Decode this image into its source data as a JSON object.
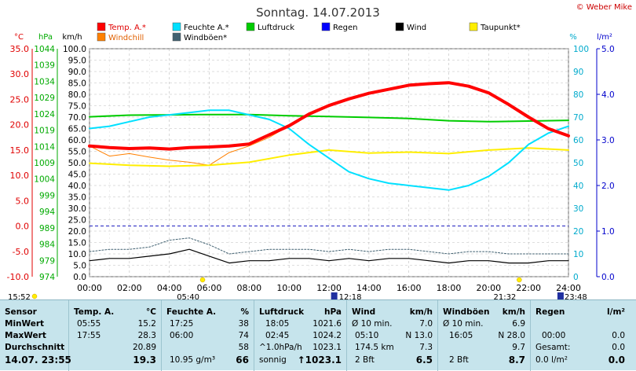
{
  "title": "Sonntag. 14.07.2013",
  "credit": "© Weber Mike",
  "legend": [
    {
      "label": "Temp. A.*",
      "color": "#ff0000"
    },
    {
      "label": "Feuchte A.*",
      "color": "#00e0ff"
    },
    {
      "label": "Luftdruck",
      "color": "#00cc00"
    },
    {
      "label": "Regen",
      "color": "#0000ff"
    },
    {
      "label": "Wind",
      "color": "#000000"
    },
    {
      "label": "Taupunkt*",
      "color": "#ffee00"
    },
    {
      "label": "Windchill",
      "color": "#ff8000"
    },
    {
      "label": "Windböen*",
      "color": "#406070"
    }
  ],
  "axis_units": {
    "temp": "°C",
    "press": "hPa",
    "wind": "km/h",
    "hum": "%",
    "rain": "l/m²"
  },
  "temp_ticks": [
    "35.0",
    "30.0",
    "25.0",
    "20.0",
    "15.0",
    "10.0",
    "5.0",
    "0.0",
    "-5.0",
    "-10.0"
  ],
  "press_ticks": [
    "1044",
    "1039",
    "1034",
    "1029",
    "1024",
    "1019",
    "1014",
    "1009",
    "1004",
    "999",
    "994",
    "989",
    "984",
    "979",
    "974"
  ],
  "wind_ticks": [
    "100.0",
    "95.0",
    "90.0",
    "85.0",
    "80.0",
    "75.0",
    "70.0",
    "65.0",
    "60.0",
    "55.0",
    "50.0",
    "45.0",
    "40.0",
    "35.0",
    "30.0",
    "25.0",
    "20.0",
    "15.0",
    "10.0",
    "5.0",
    "0.0"
  ],
  "hum_ticks": [
    "100",
    "90",
    "80",
    "70",
    "60",
    "50",
    "40",
    "30",
    "20",
    "10",
    "0"
  ],
  "rain_ticks": [
    "5.0",
    "4.0",
    "3.0",
    "2.0",
    "1.0",
    "0.0"
  ],
  "time_ticks": [
    "00:00",
    "02:00",
    "04:00",
    "06:00",
    "08:00",
    "10:00",
    "12:00",
    "14:00",
    "16:00",
    "18:00",
    "20:00",
    "22:00",
    "24:00"
  ],
  "sun_marks": {
    "sunrise": "05:40",
    "noon": "12:18",
    "sunset": "21:32",
    "moon": "23:48",
    "left": "15:52"
  },
  "chart_data": {
    "type": "line",
    "x_label": "time (h)",
    "x_range": [
      0,
      24
    ],
    "series": [
      {
        "name": "Temp. A.*",
        "axis": "temp",
        "unit": "°C",
        "color": "#ff0000",
        "x": [
          0,
          1,
          2,
          3,
          4,
          5,
          6,
          7,
          8,
          9,
          10,
          11,
          12,
          13,
          14,
          15,
          16,
          17,
          18,
          19,
          20,
          21,
          22,
          23,
          24
        ],
        "y": [
          15.8,
          15.5,
          15.3,
          15.4,
          15.2,
          15.5,
          15.6,
          15.8,
          16.2,
          18.0,
          19.8,
          22.1,
          23.8,
          25.1,
          26.2,
          27.0,
          27.8,
          28.1,
          28.3,
          27.6,
          26.3,
          24.0,
          21.5,
          19.2,
          17.8
        ]
      },
      {
        "name": "Feuchte A.*",
        "axis": "hum",
        "unit": "%",
        "color": "#00e0ff",
        "x": [
          0,
          1,
          2,
          3,
          4,
          5,
          6,
          7,
          8,
          9,
          10,
          11,
          12,
          13,
          14,
          15,
          16,
          17,
          18,
          19,
          20,
          21,
          22,
          23,
          24
        ],
        "y": [
          65,
          66,
          68,
          70,
          71,
          72,
          73,
          73,
          71,
          69,
          65,
          58,
          52,
          46,
          43,
          41,
          40,
          39,
          38,
          40,
          44,
          50,
          58,
          63,
          66
        ]
      },
      {
        "name": "Luftdruck",
        "axis": "press",
        "unit": "hPa",
        "color": "#00cc00",
        "x": [
          0,
          2,
          4,
          6,
          8,
          10,
          12,
          14,
          16,
          18,
          20,
          22,
          24
        ],
        "y": [
          1023.1,
          1023.6,
          1023.7,
          1023.8,
          1023.8,
          1023.4,
          1023.2,
          1022.9,
          1022.6,
          1021.9,
          1021.6,
          1021.8,
          1022.0
        ]
      },
      {
        "name": "Taupunkt*",
        "axis": "temp",
        "unit": "°C",
        "color": "#ffee00",
        "x": [
          0,
          2,
          4,
          6,
          8,
          10,
          12,
          14,
          16,
          18,
          20,
          22,
          24
        ],
        "y": [
          12.4,
          12.0,
          11.8,
          12.0,
          12.6,
          14.0,
          15.0,
          14.4,
          14.6,
          14.3,
          15.0,
          15.4,
          15.0
        ]
      },
      {
        "name": "Windchill",
        "axis": "temp",
        "unit": "°C",
        "color": "#ff8000",
        "x": [
          0,
          1,
          2,
          3,
          4,
          5,
          6,
          7,
          8,
          9,
          10
        ],
        "y": [
          15.8,
          13.8,
          14.3,
          13.6,
          13.0,
          12.6,
          12.0,
          14.5,
          15.8,
          17.5,
          19.8
        ]
      },
      {
        "name": "Wind",
        "axis": "wind",
        "unit": "km/h",
        "color": "#000000",
        "x": [
          0,
          1,
          2,
          3,
          4,
          5,
          6,
          7,
          8,
          9,
          10,
          11,
          12,
          13,
          14,
          15,
          16,
          17,
          18,
          19,
          20,
          21,
          22,
          23,
          24
        ],
        "y": [
          7,
          8,
          8,
          9,
          10,
          12,
          9,
          6,
          7,
          7,
          8,
          8,
          7,
          8,
          7,
          8,
          8,
          7,
          6,
          7,
          7,
          6,
          6,
          7,
          7
        ]
      },
      {
        "name": "Windböen*",
        "axis": "wind",
        "unit": "km/h",
        "color": "#406070",
        "x": [
          0,
          1,
          2,
          3,
          4,
          5,
          6,
          7,
          8,
          9,
          10,
          11,
          12,
          13,
          14,
          15,
          16,
          17,
          18,
          19,
          20,
          21,
          22,
          23,
          24
        ],
        "y": [
          11,
          12,
          12,
          13,
          16,
          17,
          14,
          10,
          11,
          12,
          12,
          12,
          11,
          12,
          11,
          12,
          12,
          11,
          10,
          11,
          11,
          10,
          10,
          10,
          10
        ]
      }
    ]
  },
  "summary": {
    "headers": {
      "sensor": "Sensor",
      "temp": "Temp. A.",
      "temp_u": "°C",
      "hum": "Feuchte A.",
      "hum_u": "%",
      "press": "Luftdruck",
      "press_u": "hPa",
      "wind": "Wind",
      "wind_u": "km/h",
      "gust": "Windböen",
      "gust_u": "km/h",
      "rain": "Regen",
      "rain_u": "l/m²"
    },
    "labels": {
      "min": "MinWert",
      "max": "MaxWert",
      "avg": "Durchschnitt",
      "now": "14.07. 23:55"
    },
    "temp": {
      "min_t": "05:55",
      "min_v": "15.2",
      "max_t": "17:55",
      "max_v": "28.3",
      "avg": "20.89",
      "now": "19.3"
    },
    "hum": {
      "min_t": "17:25",
      "min_v": "38",
      "max_t": "06:00",
      "max_v": "74",
      "avg": "58",
      "now_l": "10.95 g/m³",
      "now": "66"
    },
    "press": {
      "min_t": "18:05",
      "min_v": "1021.6",
      "max_t": "02:45",
      "max_v": "1024.2",
      "avg_l": "^1.0hPa/h",
      "avg": "1023.1",
      "now_l": "sonnig",
      "now": "↑1023.1"
    },
    "wind": {
      "r1_l": "Ø 10 min.",
      "r1_v": "7.0",
      "r2_l": "05:10",
      "r2_v": "N 13.0",
      "r3_l": "174.5 km",
      "r3_v": "7.3",
      "now_l": "2 Bft",
      "now": "6.5"
    },
    "gust": {
      "r1_l": "Ø 10 min.",
      "r1_v": "6.9",
      "r2_l": "16:05",
      "r2_v": "N 28.0",
      "r3_v": "9.7",
      "now_l": "2 Bft",
      "now": "8.7"
    },
    "rain": {
      "r2_l": "00:00",
      "r2_v": "0.0",
      "r3_l": "Gesamt:",
      "r3_v": "0.0",
      "now_l": "0.0 l/m²",
      "now": "0.0"
    }
  }
}
